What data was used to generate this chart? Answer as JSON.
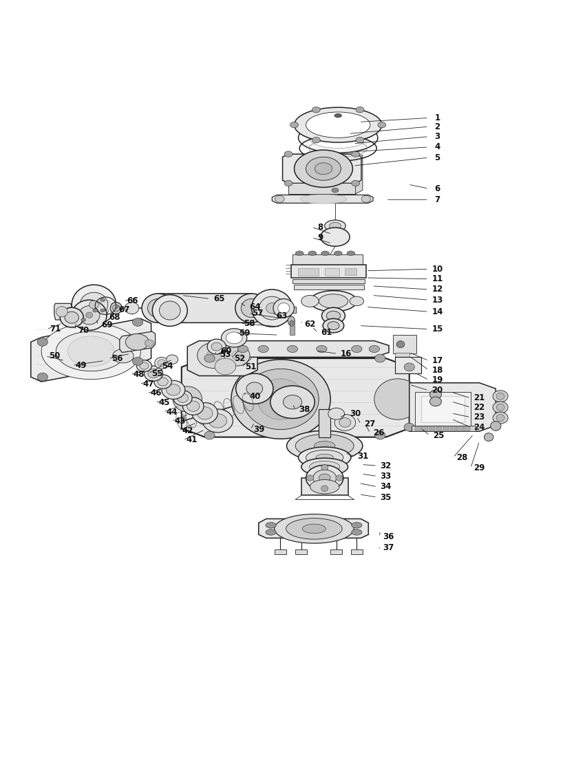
{
  "background_color": "#ffffff",
  "line_color": "#222222",
  "label_color": "#111111",
  "figsize": [
    8.5,
    11.27
  ],
  "dpi": 100,
  "callouts": [
    [
      1,
      0.748,
      0.962,
      0.614,
      0.955
    ],
    [
      2,
      0.748,
      0.947,
      0.596,
      0.935
    ],
    [
      3,
      0.748,
      0.93,
      0.604,
      0.918
    ],
    [
      4,
      0.748,
      0.912,
      0.604,
      0.904
    ],
    [
      5,
      0.748,
      0.894,
      0.604,
      0.88
    ],
    [
      6,
      0.748,
      0.841,
      0.698,
      0.848
    ],
    [
      7,
      0.748,
      0.822,
      0.66,
      0.822
    ],
    [
      8,
      0.548,
      0.775,
      0.567,
      0.763
    ],
    [
      9,
      0.548,
      0.757,
      0.567,
      0.747
    ],
    [
      10,
      0.748,
      0.703,
      0.626,
      0.7
    ],
    [
      11,
      0.748,
      0.686,
      0.626,
      0.688
    ],
    [
      12,
      0.748,
      0.668,
      0.636,
      0.674
    ],
    [
      13,
      0.748,
      0.65,
      0.636,
      0.658
    ],
    [
      14,
      0.748,
      0.63,
      0.626,
      0.638
    ],
    [
      15,
      0.748,
      0.6,
      0.614,
      0.606
    ],
    [
      16,
      0.592,
      0.558,
      0.54,
      0.563
    ],
    [
      17,
      0.748,
      0.546,
      0.7,
      0.56
    ],
    [
      18,
      0.748,
      0.53,
      0.7,
      0.554
    ],
    [
      19,
      0.748,
      0.513,
      0.71,
      0.525
    ],
    [
      20,
      0.748,
      0.495,
      0.7,
      0.505
    ],
    [
      21,
      0.82,
      0.482,
      0.772,
      0.492
    ],
    [
      22,
      0.82,
      0.466,
      0.772,
      0.476
    ],
    [
      23,
      0.82,
      0.449,
      0.772,
      0.456
    ],
    [
      24,
      0.82,
      0.432,
      0.772,
      0.446
    ],
    [
      25,
      0.75,
      0.418,
      0.72,
      0.43
    ],
    [
      26,
      0.648,
      0.422,
      0.625,
      0.436
    ],
    [
      27,
      0.632,
      0.437,
      0.61,
      0.45
    ],
    [
      28,
      0.79,
      0.38,
      0.81,
      0.42
    ],
    [
      29,
      0.82,
      0.362,
      0.82,
      0.408
    ],
    [
      30,
      0.608,
      0.455,
      0.58,
      0.448
    ],
    [
      31,
      0.62,
      0.382,
      0.59,
      0.388
    ],
    [
      32,
      0.66,
      0.366,
      0.618,
      0.368
    ],
    [
      33,
      0.66,
      0.348,
      0.618,
      0.352
    ],
    [
      34,
      0.66,
      0.33,
      0.614,
      0.336
    ],
    [
      35,
      0.66,
      0.312,
      0.614,
      0.317
    ],
    [
      36,
      0.664,
      0.244,
      0.65,
      0.255
    ],
    [
      37,
      0.664,
      0.225,
      0.648,
      0.225
    ],
    [
      38,
      0.52,
      0.462,
      0.5,
      0.472
    ],
    [
      39,
      0.443,
      0.428,
      0.435,
      0.44
    ],
    [
      40,
      0.436,
      0.485,
      0.418,
      0.49
    ],
    [
      41,
      0.328,
      0.41,
      0.35,
      0.428
    ],
    [
      42,
      0.32,
      0.426,
      0.336,
      0.44
    ],
    [
      43,
      0.308,
      0.442,
      0.322,
      0.454
    ],
    [
      44,
      0.294,
      0.458,
      0.306,
      0.468
    ],
    [
      45,
      0.28,
      0.474,
      0.292,
      0.482
    ],
    [
      46,
      0.266,
      0.49,
      0.277,
      0.498
    ],
    [
      47,
      0.253,
      0.506,
      0.264,
      0.513
    ],
    [
      48,
      0.237,
      0.522,
      0.25,
      0.53
    ],
    [
      49,
      0.138,
      0.538,
      0.178,
      0.546
    ],
    [
      50,
      0.092,
      0.554,
      0.11,
      0.546
    ],
    [
      51,
      0.428,
      0.535,
      0.432,
      0.552
    ],
    [
      52,
      0.41,
      0.55,
      0.41,
      0.566
    ],
    [
      53,
      0.385,
      0.556,
      0.388,
      0.566
    ],
    [
      54,
      0.286,
      0.537,
      0.295,
      0.548
    ],
    [
      55,
      0.268,
      0.524,
      0.278,
      0.538
    ],
    [
      56,
      0.2,
      0.55,
      0.222,
      0.558
    ],
    [
      57,
      0.44,
      0.627,
      0.485,
      0.618
    ],
    [
      58,
      0.426,
      0.61,
      0.48,
      0.604
    ],
    [
      59,
      0.418,
      0.593,
      0.476,
      0.59
    ],
    [
      60,
      0.386,
      0.562,
      0.365,
      0.556
    ],
    [
      61,
      0.558,
      0.594,
      0.534,
      0.604
    ],
    [
      62,
      0.53,
      0.608,
      0.516,
      0.612
    ],
    [
      63,
      0.482,
      0.622,
      0.47,
      0.63
    ],
    [
      64,
      0.436,
      0.638,
      0.41,
      0.646
    ],
    [
      65,
      0.374,
      0.652,
      0.31,
      0.658
    ],
    [
      66,
      0.226,
      0.648,
      0.238,
      0.655
    ],
    [
      67,
      0.212,
      0.633,
      0.204,
      0.643
    ],
    [
      68,
      0.195,
      0.62,
      0.186,
      0.634
    ],
    [
      69,
      0.182,
      0.607,
      0.164,
      0.618
    ],
    [
      70,
      0.142,
      0.598,
      0.13,
      0.612
    ],
    [
      71,
      0.094,
      0.6,
      0.106,
      0.61
    ]
  ]
}
